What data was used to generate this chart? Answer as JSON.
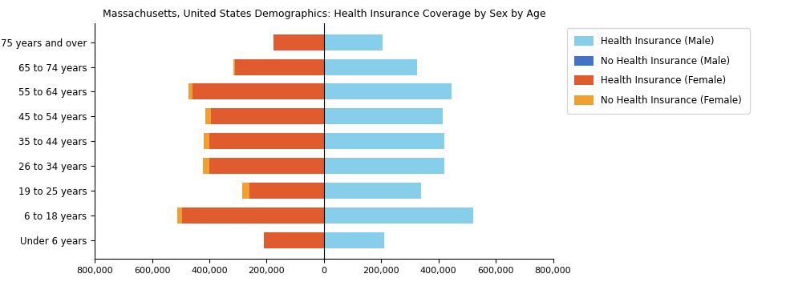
{
  "title": "Massachusetts, United States Demographics: Health Insurance Coverage by Sex by Age",
  "age_groups": [
    "Under 6 years",
    "6 to 18 years",
    "19 to 25 years",
    "26 to 34 years",
    "35 to 44 years",
    "45 to 54 years",
    "55 to 64 years",
    "65 to 74 years",
    "75 years and over"
  ],
  "health_insurance_male": [
    210000,
    520000,
    340000,
    420000,
    420000,
    415000,
    445000,
    325000,
    205000
  ],
  "no_health_insurance_male": [
    0,
    0,
    0,
    0,
    0,
    0,
    0,
    0,
    0
  ],
  "health_insurance_female": [
    210000,
    495000,
    260000,
    400000,
    400000,
    395000,
    460000,
    310000,
    175000
  ],
  "no_health_insurance_female": [
    0,
    18000,
    25000,
    22000,
    20000,
    18000,
    12000,
    6000,
    2000
  ],
  "color_health_male": "#87CEEB",
  "color_no_health_male": "#4472C4",
  "color_health_female": "#E05C2E",
  "color_no_health_female": "#F0A030",
  "xlim": 800000,
  "legend_labels": [
    "Health Insurance (Male)",
    "No Health Insurance (Male)",
    "Health Insurance (Female)",
    "No Health Insurance (Female)"
  ]
}
